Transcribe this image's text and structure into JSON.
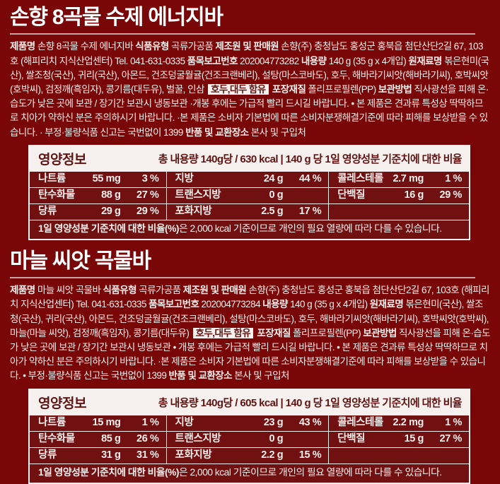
{
  "theme": {
    "background": "#7a0707",
    "table-bg": "#711011",
    "ink": "#f6efec",
    "paper": "#f6f1ee",
    "accent": "#5f1413",
    "divider": "#c8a29e"
  },
  "products": [
    {
      "title": "손향 8곡물 수제 에너지바",
      "info_segments": [
        {
          "s": "bold",
          "t": "제품명"
        },
        {
          "s": "normal",
          "t": " 손향 8곡물 수제 에너지바  "
        },
        {
          "s": "bold",
          "t": "식품유형"
        },
        {
          "s": "normal",
          "t": " 곡류가공품  "
        },
        {
          "s": "bold",
          "t": "제조원 및 판매원"
        },
        {
          "s": "normal",
          "t": " 손향(주) 충청남도 홍성군 홍북읍 첨단산단2길 67, 103호 (해피리치 지식산업센터) Tel. 041-631-0335 "
        },
        {
          "s": "bold",
          "t": "품목보고번호"
        },
        {
          "s": "normal",
          "t": " 202004773282 "
        },
        {
          "s": "bold",
          "t": "내용량"
        },
        {
          "s": "normal",
          "t": " 140 g (35 g x 4개입) "
        },
        {
          "s": "bold",
          "t": "원재료명"
        },
        {
          "s": "normal",
          "t": " 볶은현미(국산), 쌀조청(국산), 귀리(국산), 아몬드, 건조덩굴월귤(건조크랜베리), 설탕(마스코바도), 호두, 해바라기씨앗(해바라기씨), 호박씨앗(호박씨), 검정깨(흑임자), 콩기름(대두유), 벌꿀, 인삼 "
        },
        {
          "s": "highlight",
          "t": "호두,대두 함유"
        },
        {
          "s": "normal",
          "t": " "
        },
        {
          "s": "bold",
          "t": "포장재질"
        },
        {
          "s": "normal",
          "t": " 폴리프로필렌(PP)  "
        },
        {
          "s": "bold",
          "t": "보관방법"
        },
        {
          "s": "normal",
          "t": " 직사광선을 피해 온·습도가 낮은 곳에 보관 / 장기간 보관시 냉동보관  ·개봉 후에는 가급적 빨리 드시길 바랍니다. • 본 제품은 견과류 특성상 딱딱하므로 치아가 약하신 분은 주의하시기 바랍니다. ·본 제품은 소비자 기본법에 따른 소비자분쟁해결기준에 따라 피해를 보상받을 수 있습니다. · 부정·불량식품 신고는 국번없이 1399 "
        },
        {
          "s": "bold",
          "t": "반품 및 교환장소"
        },
        {
          "s": "normal",
          "t": " 본사 및 구입처"
        }
      ],
      "nutrition": {
        "header_label": "영양정보",
        "header_summary": "총 내용량 140g당 / 630 kcal | 140 g 당 1일 영양성분 기준치에 대한 비율",
        "rows": [
          [
            {
              "name": "나트륨",
              "amount": "55 mg",
              "dv": "3 %"
            },
            {
              "name": "지방",
              "amount": "24 g",
              "dv": "44 %"
            },
            {
              "name": "콜레스테롤",
              "amount": "2.7 mg",
              "dv": "1 %"
            }
          ],
          [
            {
              "name": "탄수화물",
              "amount": "88 g",
              "dv": "27 %"
            },
            {
              "name": "트랜스지방",
              "amount": "0 g",
              "dv": ""
            },
            {
              "name": "단백질",
              "amount": "16 g",
              "dv": "29 %"
            }
          ],
          [
            {
              "name": "당류",
              "amount": "29 g",
              "dv": "29 %"
            },
            {
              "name": "포화지방",
              "amount": "2.5 g",
              "dv": "17 %"
            },
            {
              "name": "",
              "amount": "",
              "dv": ""
            }
          ]
        ],
        "footnote_bold": "1일 영양성분 기준치에 대한 비율(%)",
        "footnote_rest": "은 2,000 kcal 기준이므로 개인의 필요 열량에 따라 다를 수 있습니다."
      }
    },
    {
      "title": "마늘 씨앗 곡물바",
      "info_segments": [
        {
          "s": "bold",
          "t": "제품명"
        },
        {
          "s": "normal",
          "t": " 마늘 씨앗 곡물바  "
        },
        {
          "s": "bold",
          "t": "식품유형"
        },
        {
          "s": "normal",
          "t": " 곡류가공품  "
        },
        {
          "s": "bold",
          "t": "제조원 및 판매원"
        },
        {
          "s": "normal",
          "t": " 손향(주) 충청남도 홍성군 홍북읍 첨단산단2길 67, 103호 (해피리치 지식산업센터) Tel. 041-631-0335 "
        },
        {
          "s": "bold",
          "t": "품목보고번호"
        },
        {
          "s": "normal",
          "t": " 202004773284 "
        },
        {
          "s": "bold",
          "t": "내용량"
        },
        {
          "s": "normal",
          "t": " 140 g (35 g x 4개입) "
        },
        {
          "s": "bold",
          "t": "원재료명"
        },
        {
          "s": "normal",
          "t": " 볶은현미(국산), 쌀조청(국산), 귀리(국산), 아몬드, 건조덩굴월귤(건조크랜베리), 설탕(마스코바도), 호두, 해바라기씨앗(해바라기씨), 호박씨앗(호박씨), 마늘(마늘 씨앗), 검정깨(흑임자), 콩기름(대두유) "
        },
        {
          "s": "highlight",
          "t": "호두,대두 함유"
        },
        {
          "s": "normal",
          "t": " "
        },
        {
          "s": "bold",
          "t": "포장재질"
        },
        {
          "s": "normal",
          "t": " 폴리프로필렌(PP)  "
        },
        {
          "s": "bold",
          "t": "보관방법"
        },
        {
          "s": "normal",
          "t": " 직사광선을 피해 온·습도가 낮은 곳에 보관 / 장기간 보관시 냉동보관 • 개봉 후에는 가급적 빨리 드시길 바랍니다. • 본 제품은 견과류 특성상 딱딱하므로 치아가 약하신 분은 주의하시기 바랍니다. ·본 제품은 소비자 기본법에 따른 소비자분쟁해결기준에 따라 피해를 보상받을 수 있습니다. • 부정·불량식품 신고는 국번없이 1399 "
        },
        {
          "s": "bold",
          "t": "반품 및 교환장소"
        },
        {
          "s": "normal",
          "t": " 본사 및 구입처"
        }
      ],
      "nutrition": {
        "header_label": "영양정보",
        "header_summary": "총 내용량 140g당 / 605 kcal | 140 g 당 1일 영양성분 기준치에 대한 비율",
        "rows": [
          [
            {
              "name": "나트륨",
              "amount": "15 mg",
              "dv": "1 %"
            },
            {
              "name": "지방",
              "amount": "23 g",
              "dv": "43 %"
            },
            {
              "name": "콜레스테롤",
              "amount": "2.2 mg",
              "dv": "1 %"
            }
          ],
          [
            {
              "name": "탄수화물",
              "amount": "85 g",
              "dv": "26 %"
            },
            {
              "name": "트랜스지방",
              "amount": "0 g",
              "dv": ""
            },
            {
              "name": "단백질",
              "amount": "15 g",
              "dv": "27 %"
            }
          ],
          [
            {
              "name": "당류",
              "amount": "31 g",
              "dv": "31 %"
            },
            {
              "name": "포화지방",
              "amount": "2.2 g",
              "dv": "15 %"
            },
            {
              "name": "",
              "amount": "",
              "dv": ""
            }
          ]
        ],
        "footnote_bold": "1일 영양성분 기준치에 대한 비율(%)",
        "footnote_rest": "은 2,000 kcal 기준이므로 개인의 필요 열량에 따라 다를 수 있습니다."
      }
    }
  ]
}
